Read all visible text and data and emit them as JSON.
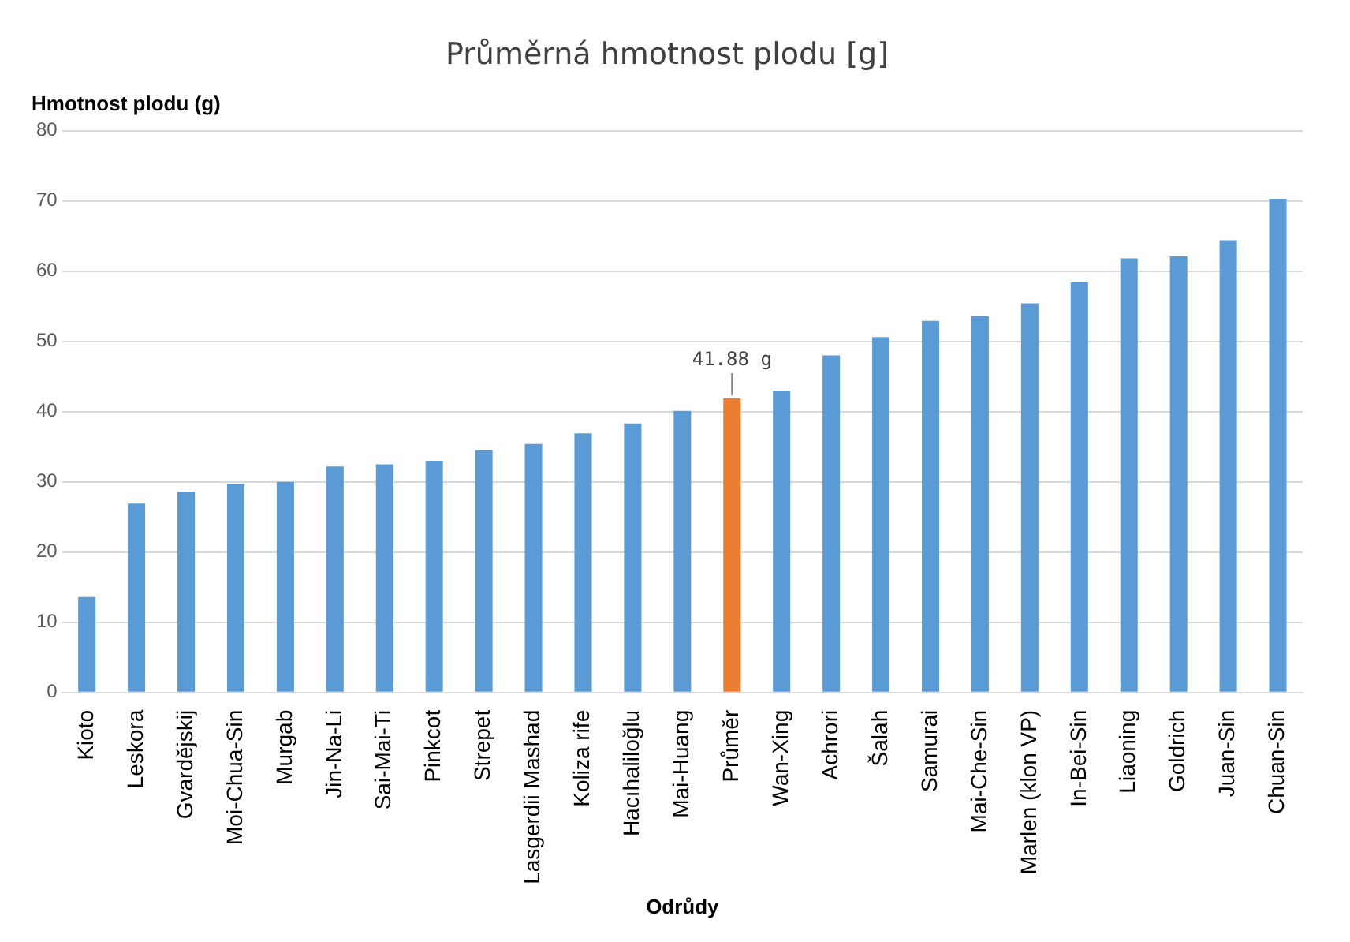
{
  "chart_data": {
    "type": "bar",
    "title": "Průměrná hmotnost plodu [g]",
    "ylabel": "Hmotnost plodu (g)",
    "xlabel": "Odrůdy",
    "categories": [
      "Kioto",
      "Leskora",
      "Gvardějskij",
      "Moi-Chua-Sin",
      "Murgab",
      "Jin-Na-Li",
      "Sai-Mai-Ti",
      "Pinkcot",
      "Strepet",
      "Lasgerdii Mashad",
      "Koliza rife",
      "Hacıhaliloğlu",
      "Mai-Huang",
      "Průměr",
      "Wan-Xing",
      "Achrori",
      "Šalah",
      "Samurai",
      "Mai-Che-Sin",
      "Marlen (klon VP)",
      "In-Bei-Sin",
      "Liaoning",
      "Goldrich",
      "Juan-Sin",
      "Chuan-Sin"
    ],
    "values": [
      13.6,
      26.9,
      28.6,
      29.7,
      30.0,
      32.2,
      32.5,
      33.0,
      34.5,
      35.4,
      36.9,
      38.3,
      40.1,
      41.88,
      43.0,
      48.0,
      50.6,
      52.9,
      53.6,
      55.4,
      58.4,
      61.8,
      62.1,
      64.4,
      70.3
    ],
    "colors": [
      "#5b9bd5",
      "#5b9bd5",
      "#5b9bd5",
      "#5b9bd5",
      "#5b9bd5",
      "#5b9bd5",
      "#5b9bd5",
      "#5b9bd5",
      "#5b9bd5",
      "#5b9bd5",
      "#5b9bd5",
      "#5b9bd5",
      "#5b9bd5",
      "#ed7d31",
      "#5b9bd5",
      "#5b9bd5",
      "#5b9bd5",
      "#5b9bd5",
      "#5b9bd5",
      "#5b9bd5",
      "#5b9bd5",
      "#5b9bd5",
      "#5b9bd5",
      "#5b9bd5",
      "#5b9bd5"
    ],
    "value_labels": [
      null,
      null,
      null,
      null,
      null,
      null,
      null,
      null,
      null,
      null,
      null,
      null,
      null,
      "41.88 g",
      null,
      null,
      null,
      null,
      null,
      null,
      null,
      null,
      null,
      null,
      null
    ],
    "ylim": [
      0,
      80
    ],
    "yticks": [
      0,
      10,
      20,
      30,
      40,
      50,
      60,
      70,
      80
    ],
    "grid": "y",
    "legend": false
  }
}
